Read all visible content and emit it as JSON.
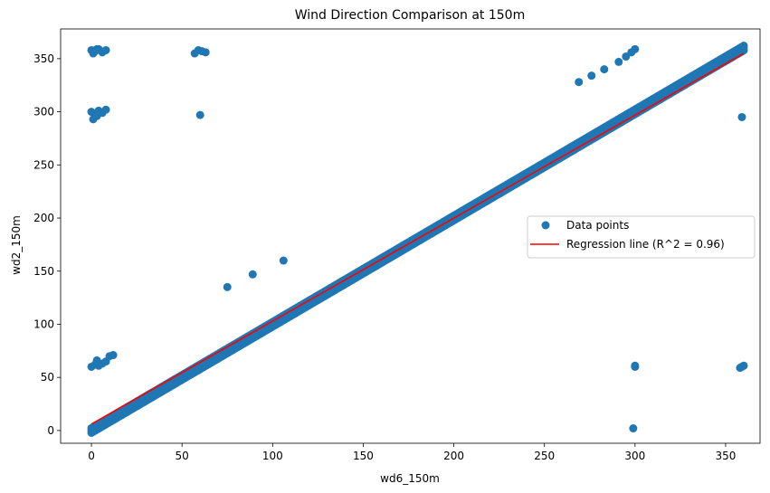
{
  "chart_data": {
    "type": "scatter",
    "title": "Wind Direction Comparison at 150m",
    "xlabel": "wd6_150m",
    "ylabel": "wd2_150m",
    "xlim": [
      -17,
      369
    ],
    "ylim": [
      -12,
      378
    ],
    "xticks": [
      0,
      50,
      100,
      150,
      200,
      250,
      300,
      350
    ],
    "yticks": [
      0,
      50,
      100,
      150,
      200,
      250,
      300,
      350
    ],
    "grid": false,
    "legend": {
      "placement": "center-right",
      "entries": [
        "Data points",
        "Regression line (R^2 = 0.96)"
      ]
    },
    "colors": {
      "points": "#1f77b4",
      "line": "#ff0000"
    },
    "series": [
      {
        "name": "Data points",
        "kind": "scatter",
        "diagonal_band": {
          "x_range": [
            0,
            360
          ],
          "slope": 1.0,
          "intercept": 0
        },
        "outliers": [
          [
            0,
            358
          ],
          [
            2,
            357
          ],
          [
            4,
            359
          ],
          [
            6,
            356
          ],
          [
            8,
            358
          ],
          [
            1,
            355
          ],
          [
            3,
            359
          ],
          [
            0,
            300
          ],
          [
            2,
            298
          ],
          [
            4,
            301
          ],
          [
            6,
            299
          ],
          [
            8,
            302
          ],
          [
            1,
            293
          ],
          [
            3,
            296
          ],
          [
            0,
            60
          ],
          [
            2,
            62
          ],
          [
            4,
            61
          ],
          [
            6,
            63
          ],
          [
            8,
            65
          ],
          [
            10,
            70
          ],
          [
            12,
            71
          ],
          [
            3,
            66
          ],
          [
            57,
            355
          ],
          [
            59,
            358
          ],
          [
            61,
            357
          ],
          [
            63,
            356
          ],
          [
            60,
            297
          ],
          [
            75,
            135
          ],
          [
            89,
            147
          ],
          [
            106,
            160
          ],
          [
            269,
            328
          ],
          [
            276,
            334
          ],
          [
            283,
            340
          ],
          [
            291,
            347
          ],
          [
            295,
            352
          ],
          [
            298,
            356
          ],
          [
            300,
            359
          ],
          [
            300,
            60
          ],
          [
            300,
            61
          ],
          [
            299,
            2
          ],
          [
            358,
            59
          ],
          [
            359,
            60
          ],
          [
            360,
            61
          ],
          [
            359,
            295
          ]
        ]
      },
      {
        "name": "Regression line (R^2 = 0.96)",
        "kind": "line",
        "x": [
          0,
          360
        ],
        "y": [
          6,
          355
        ]
      }
    ]
  }
}
